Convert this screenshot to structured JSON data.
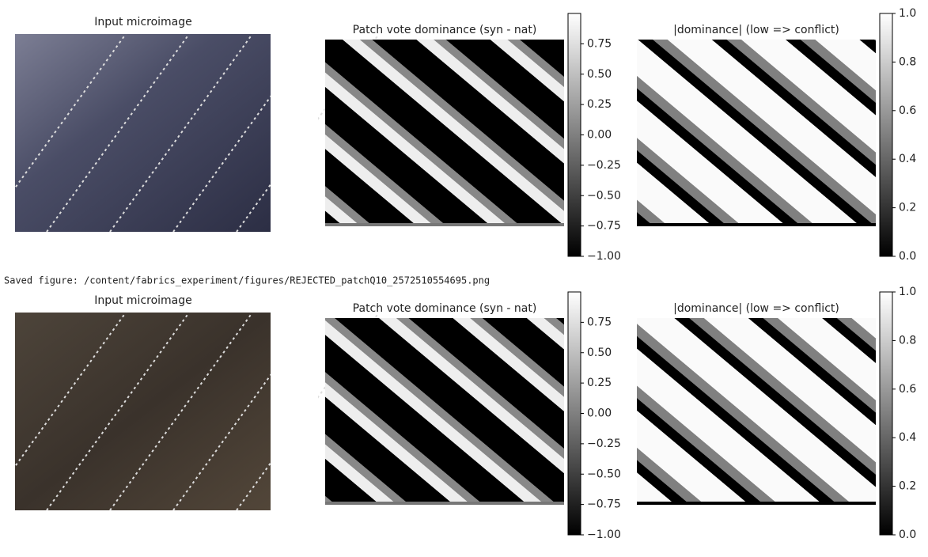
{
  "saved_message": "Saved figure: /content/fabrics_experiment/figures/REJECTED_patchQ10_2572510554695.png",
  "figures": [
    {
      "input_title": "Input microimage",
      "dominance": {
        "title": "Patch vote dominance (syn - nat)",
        "clim": [
          -1,
          1
        ],
        "ticks": [
          0.75,
          {
            "value": 0.5,
            "label": "0.50"
          },
          0.25,
          {
            "value": 0,
            "label": "0.00"
          },
          {
            "value": -0.25,
            "label": "−0.25"
          },
          {
            "value": -0.5,
            "label": "−0.50"
          },
          {
            "value": -0.75,
            "label": "−0.75"
          },
          {
            "value": -1,
            "label": "−1.00"
          }
        ]
      },
      "abs_dominance": {
        "title": "|dominance| (low => conflict)",
        "clim": [
          0,
          1
        ],
        "ticks": [
          {
            "value": 1,
            "label": "1.0"
          },
          0.8,
          0.6,
          0.4,
          0.2,
          {
            "value": 0,
            "label": "0.0"
          }
        ]
      }
    },
    {
      "input_title": "Input microimage",
      "dominance": {
        "title": "Patch vote dominance (syn - nat)",
        "clim": [
          -1,
          1
        ],
        "ticks": [
          0.75,
          {
            "value": 0.5,
            "label": "0.50"
          },
          0.25,
          {
            "value": 0,
            "label": "0.00"
          },
          {
            "value": -0.25,
            "label": "−0.25"
          },
          {
            "value": -0.5,
            "label": "−0.50"
          },
          {
            "value": -0.75,
            "label": "−0.75"
          },
          {
            "value": -1,
            "label": "−1.00"
          }
        ]
      },
      "abs_dominance": {
        "title": "|dominance| (low => conflict)",
        "clim": [
          0,
          1
        ],
        "ticks": [
          {
            "value": 1,
            "label": "1.0"
          },
          0.8,
          0.6,
          0.4,
          0.2,
          {
            "value": 0,
            "label": "0.0"
          }
        ]
      }
    }
  ]
}
